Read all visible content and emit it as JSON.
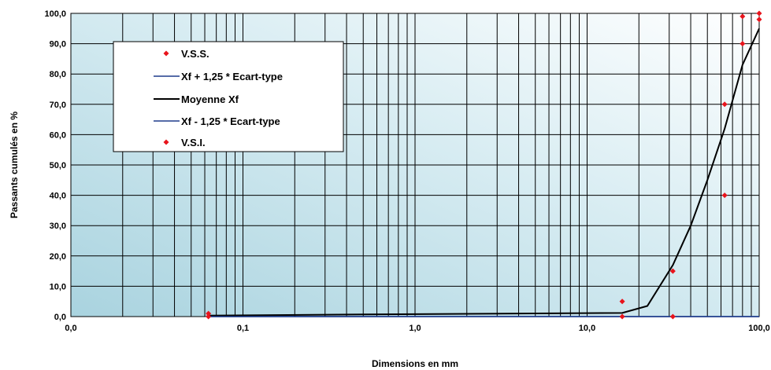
{
  "chart_data": {
    "type": "scatter",
    "xlabel": "Dimensions en mm",
    "ylabel": "Passants cumulés en %",
    "x_scale": "log",
    "xlim": [
      0.01,
      100
    ],
    "ylim": [
      0,
      100
    ],
    "x_ticks": [
      "0,0",
      "0,1",
      "1,0",
      "10,0",
      "100,0"
    ],
    "y_ticks": [
      "0,0",
      "10,0",
      "20,0",
      "30,0",
      "40,0",
      "50,0",
      "60,0",
      "70,0",
      "80,0",
      "90,0",
      "100,0"
    ],
    "grid": true,
    "legend_position": "top-left",
    "series": [
      {
        "name": "V.S.S.",
        "kind": "markers",
        "color": "#e8141c",
        "points": [
          [
            0.063,
            1
          ],
          [
            16,
            5
          ],
          [
            31.5,
            15
          ],
          [
            63,
            70
          ],
          [
            80,
            90
          ],
          [
            80,
            99
          ],
          [
            100,
            100
          ]
        ]
      },
      {
        "name": "Xf + 1,25 * Ecart-type",
        "kind": "line",
        "color": "#1f3c8c",
        "points": [
          [
            0.063,
            0
          ],
          [
            20,
            0
          ],
          [
            100,
            0
          ]
        ]
      },
      {
        "name": "Moyenne Xf",
        "kind": "line",
        "color": "#000000",
        "points": [
          [
            0.063,
            0.3
          ],
          [
            0.5,
            0.7
          ],
          [
            2,
            0.9
          ],
          [
            16,
            1.2
          ],
          [
            22.4,
            3.5
          ],
          [
            31.5,
            17
          ],
          [
            40,
            30
          ],
          [
            50,
            45
          ],
          [
            63,
            62
          ],
          [
            80,
            83
          ],
          [
            100,
            95
          ]
        ]
      },
      {
        "name": "Xf - 1,25 * Ecart-type",
        "kind": "line",
        "color": "#1f3c8c",
        "points": [
          [
            0.063,
            0
          ],
          [
            20,
            0
          ],
          [
            100,
            0
          ]
        ]
      },
      {
        "name": "V.S.I.",
        "kind": "markers",
        "color": "#e8141c",
        "points": [
          [
            0.063,
            0
          ],
          [
            16,
            0
          ],
          [
            31.5,
            0
          ],
          [
            63,
            40
          ],
          [
            100,
            98
          ]
        ]
      }
    ]
  }
}
